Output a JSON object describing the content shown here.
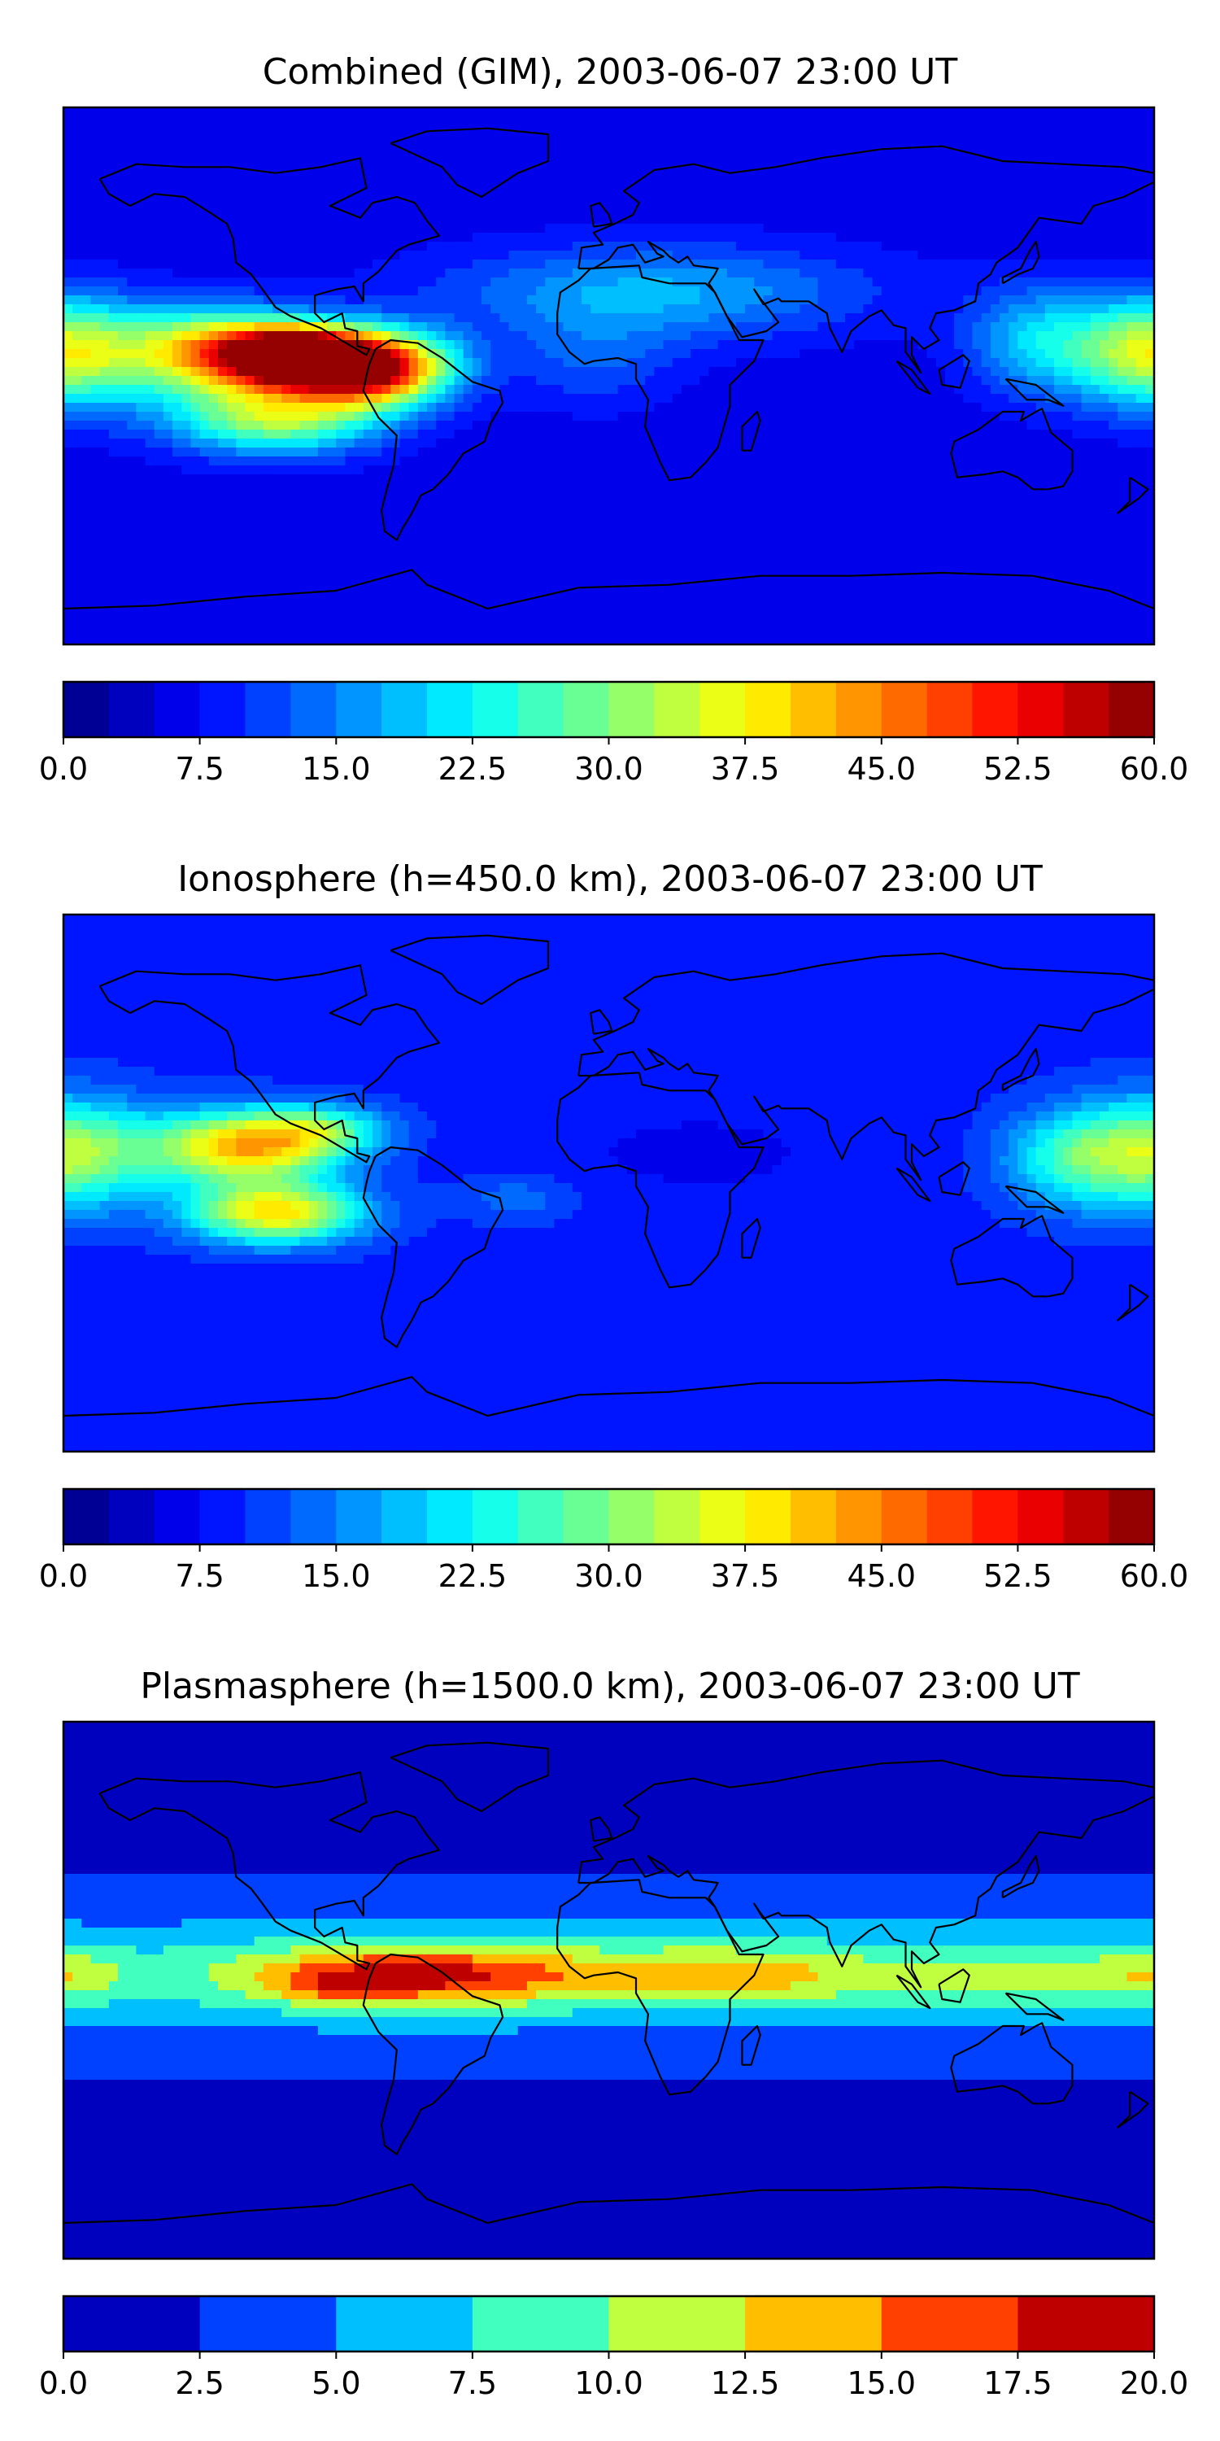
{
  "chart_data": [
    {
      "type": "heatmap",
      "map": "world-equirectangular",
      "title": "Combined (GIM), 2003-06-07 23:00 UT",
      "colorbar": {
        "colormap": "jet",
        "levels": 24,
        "range": [
          0.0,
          60.0
        ],
        "ticks": [
          "0.0",
          "7.5",
          "15.0",
          "22.5",
          "30.0",
          "37.5",
          "45.0",
          "52.5",
          "60.0"
        ]
      },
      "features": [
        {
          "lon": -80,
          "lat": 3,
          "value": 57,
          "spread_lon": 26,
          "spread_lat": 12
        },
        {
          "lon": -105,
          "lat": 7,
          "value": 53,
          "spread_lon": 20,
          "spread_lat": 9
        },
        {
          "lon": -130,
          "lat": 8,
          "value": 35,
          "spread_lon": 28,
          "spread_lat": 14
        },
        {
          "lon": -110,
          "lat": -14,
          "value": 26,
          "spread_lon": 34,
          "spread_lat": 12
        },
        {
          "lon": 180,
          "lat": 8,
          "value": 30,
          "spread_lon": 28,
          "spread_lat": 18
        },
        {
          "lon": 140,
          "lat": 12,
          "value": 12,
          "spread_lon": 22,
          "spread_lat": 18
        },
        {
          "lon": 15,
          "lat": 28,
          "value": 12,
          "spread_lon": 70,
          "spread_lat": 16
        },
        {
          "lon": -5,
          "lat": 5,
          "value": 6,
          "spread_lon": 28,
          "spread_lat": 16
        }
      ],
      "baseline": 6
    },
    {
      "type": "heatmap",
      "map": "world-equirectangular",
      "title": "Ionosphere  (h=450.0 km), 2003-06-07 23:00 UT",
      "colorbar": {
        "colormap": "jet",
        "levels": 24,
        "range": [
          0.0,
          60.0
        ],
        "ticks": [
          "0.0",
          "7.5",
          "15.0",
          "22.5",
          "30.0",
          "37.5",
          "45.0",
          "52.5",
          "60.0"
        ]
      },
      "features": [
        {
          "lon": -120,
          "lat": 12,
          "value": 32,
          "spread_lon": 30,
          "spread_lat": 12
        },
        {
          "lon": -110,
          "lat": -10,
          "value": 30,
          "spread_lon": 28,
          "spread_lat": 10
        },
        {
          "lon": -95,
          "lat": 18,
          "value": 14,
          "spread_lon": 22,
          "spread_lat": 8
        },
        {
          "lon": 180,
          "lat": 10,
          "value": 24,
          "spread_lon": 30,
          "spread_lat": 18
        },
        {
          "lon": 150,
          "lat": 8,
          "value": 10,
          "spread_lon": 22,
          "spread_lat": 16
        },
        {
          "lon": 30,
          "lat": 10,
          "value": -2,
          "spread_lon": 55,
          "spread_lat": 18
        },
        {
          "lon": -30,
          "lat": -5,
          "value": 5,
          "spread_lon": 20,
          "spread_lat": 8
        }
      ],
      "baseline": 9
    },
    {
      "type": "heatmap",
      "map": "world-equirectangular",
      "title": "Plasmasphere (h=1500.0 km), 2003-06-07 23:00 UT",
      "colorbar": {
        "colormap": "jet",
        "levels": 8,
        "range": [
          0.0,
          20.0
        ],
        "ticks": [
          "0.0",
          "2.5",
          "5.0",
          "7.5",
          "10.0",
          "12.5",
          "15.0",
          "17.5",
          "20.0"
        ]
      },
      "features": [
        {
          "lon": -65,
          "lat": 5,
          "value": 11.5,
          "spread_lon": 55,
          "spread_lat": 10
        },
        {
          "lon": -90,
          "lat": 0,
          "value": 3,
          "spread_lon": 18,
          "spread_lat": 6
        },
        {
          "lon": 40,
          "lat": 5,
          "value": 6.5,
          "spread_lon": 55,
          "spread_lat": 10
        },
        {
          "lon": 140,
          "lat": 5,
          "value": 3,
          "spread_lon": 40,
          "spread_lat": 10
        },
        {
          "lon": 180,
          "lat": 5,
          "value": 4,
          "spread_lon": 20,
          "spread_lat": 8
        }
      ],
      "baseline": 2,
      "band": {
        "lat": 5,
        "value": 5.5,
        "spread_lat": 22
      }
    }
  ]
}
